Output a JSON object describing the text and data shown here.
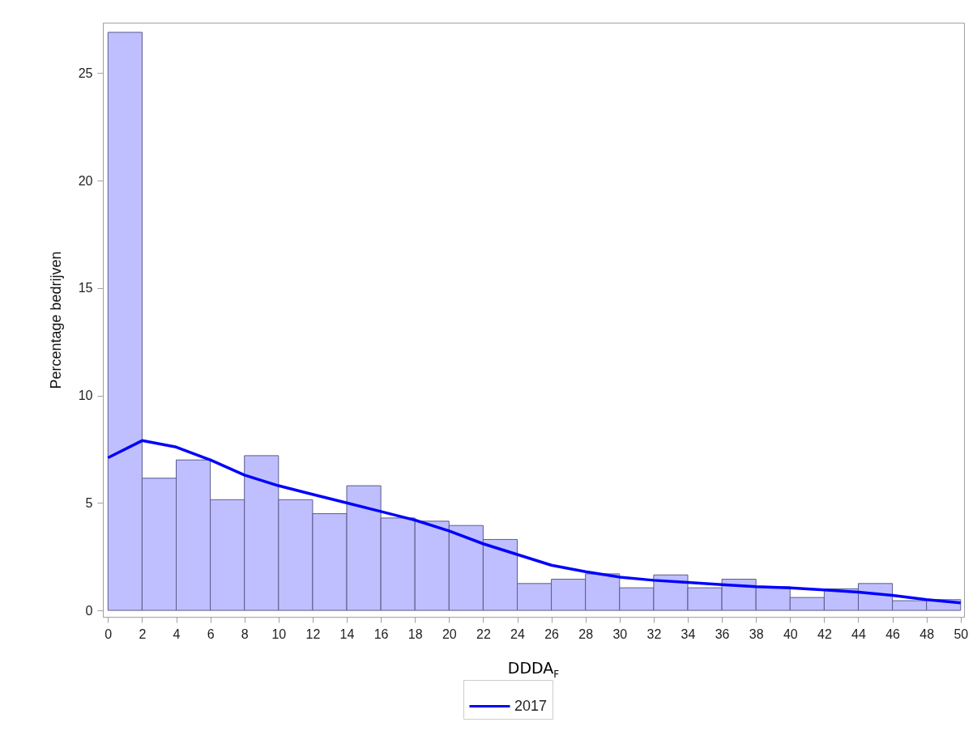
{
  "chart_data": {
    "type": "histogram",
    "xlabel": "DDDA$_{F}$",
    "ylabel": "Percentage bedrijven",
    "color": "#bfbfff",
    "bins": [
      0,
      2,
      4,
      6,
      8,
      10,
      12,
      14,
      16,
      18,
      20,
      22,
      24,
      26,
      28,
      30,
      32,
      34,
      36,
      38,
      40,
      42,
      44,
      46,
      48,
      50
    ],
    "values": [
      26.9,
      6.15,
      7.0,
      5.15,
      7.2,
      5.15,
      4.5,
      5.8,
      4.3,
      4.15,
      3.95,
      3.3,
      1.25,
      1.45,
      1.7,
      1.05,
      1.65,
      1.05,
      1.45,
      1.1,
      0.6,
      1.0,
      1.25,
      0.45,
      0.5
    ],
    "series": [
      {
        "name": "2017",
        "type": "line",
        "color": "#0000ff",
        "x": [
          0,
          2,
          4,
          6,
          8,
          10,
          12,
          14,
          16,
          18,
          20,
          22,
          24,
          26,
          28,
          30,
          32,
          34,
          36,
          38,
          40,
          42,
          44,
          46,
          48,
          50
        ],
        "values": [
          7.1,
          7.9,
          7.6,
          7.0,
          6.3,
          5.8,
          5.4,
          5.0,
          4.6,
          4.2,
          3.7,
          3.1,
          2.6,
          2.1,
          1.8,
          1.55,
          1.4,
          1.3,
          1.2,
          1.1,
          1.05,
          0.95,
          0.85,
          0.7,
          0.5,
          0.35
        ]
      }
    ],
    "xlim": [
      -0.3,
      50.2
    ],
    "ylim": [
      -0.3,
      27.35
    ],
    "xticks": [
      0,
      2,
      4,
      6,
      8,
      10,
      12,
      14,
      16,
      18,
      20,
      22,
      24,
      26,
      28,
      30,
      32,
      34,
      36,
      38,
      40,
      42,
      44,
      46,
      48,
      50
    ],
    "yticks": [
      0,
      5,
      10,
      15,
      20,
      25
    ],
    "grid": false,
    "legend": "bottom"
  }
}
